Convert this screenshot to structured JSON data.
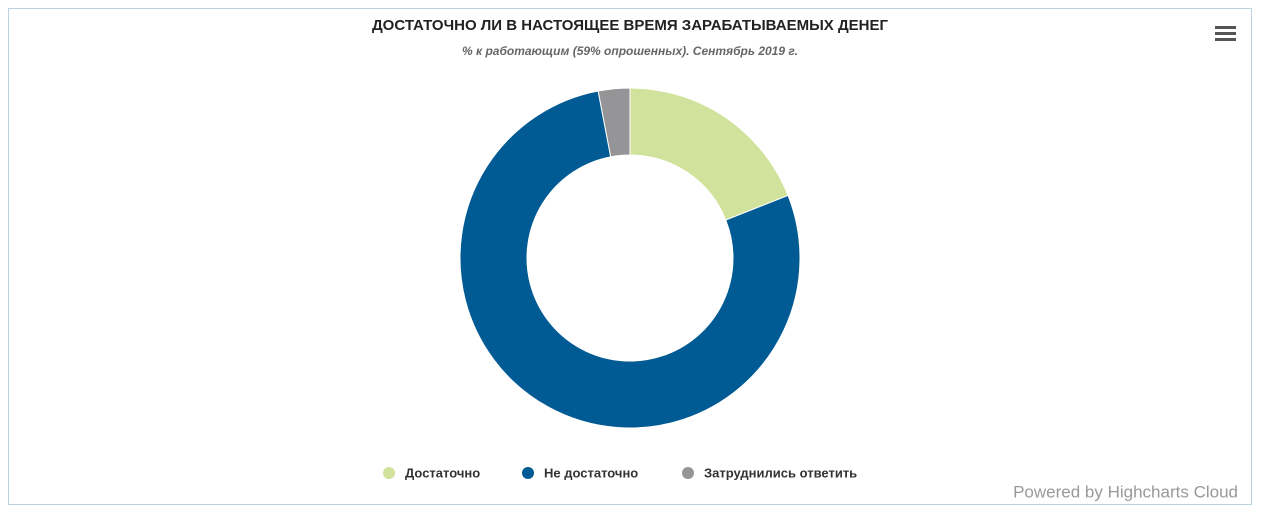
{
  "chart_data": {
    "type": "pie",
    "title": "ДОСТАТОЧНО ЛИ В НАСТОЯЩЕЕ ВРЕМЯ ЗАРАБАТЫВАЕМЫХ ДЕНЕГ",
    "subtitle": "% к работающим (59% опрошенных). Сентябрь 2019 г.",
    "categories": [
      "Достаточно",
      "Не достаточно",
      "Затруднились ответить"
    ],
    "values": [
      19,
      78,
      3
    ],
    "colors": [
      "#d0e29b",
      "#005a94",
      "#959597"
    ],
    "legend": "bottom",
    "credits": "Powered by Highcharts Cloud"
  }
}
